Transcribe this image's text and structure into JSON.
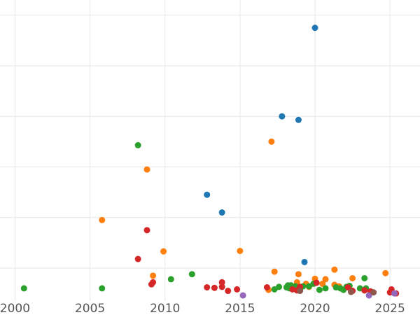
{
  "chart_data": {
    "type": "scatter",
    "title": "",
    "xlabel": "",
    "ylabel": "",
    "xlim": [
      1999,
      2027
    ],
    "ylim": [
      -0.15,
      5.8
    ],
    "grid": true,
    "x_ticks": [
      2000,
      2005,
      2010,
      2015,
      2020,
      2025
    ],
    "x_tick_labels": [
      "2000",
      "2005",
      "2010",
      "2015",
      "2020",
      "2025"
    ],
    "y_gridlines": [
      0.5,
      1.5,
      2.5,
      3.5,
      4.5,
      5.5
    ],
    "series": [
      {
        "color": "#1f77b4",
        "points": [
          [
            2012.8,
            1.95
          ],
          [
            2013.8,
            1.6
          ],
          [
            2017.8,
            3.5
          ],
          [
            2018.9,
            3.43
          ],
          [
            2019.3,
            0.62
          ],
          [
            2020.0,
            5.25
          ]
        ]
      },
      {
        "color": "#ff7f0e",
        "points": [
          [
            2005.8,
            1.45
          ],
          [
            2008.8,
            2.45
          ],
          [
            2009.2,
            0.35
          ],
          [
            2009.9,
            0.83
          ],
          [
            2015.0,
            0.84
          ],
          [
            2016.9,
            0.07
          ],
          [
            2017.1,
            3.0
          ],
          [
            2017.3,
            0.43
          ],
          [
            2018.8,
            0.22
          ],
          [
            2018.9,
            0.38
          ],
          [
            2019.4,
            0.19
          ],
          [
            2019.6,
            0.13
          ],
          [
            2020.0,
            0.29
          ],
          [
            2020.5,
            0.19
          ],
          [
            2020.7,
            0.28
          ],
          [
            2021.3,
            0.47
          ],
          [
            2021.3,
            0.17
          ],
          [
            2021.6,
            0.14
          ],
          [
            2022.5,
            0.3
          ],
          [
            2024.7,
            0.4
          ]
        ]
      },
      {
        "color": "#2ca02c",
        "points": [
          [
            2000.6,
            0.1
          ],
          [
            2005.8,
            0.1
          ],
          [
            2008.2,
            2.93
          ],
          [
            2010.4,
            0.28
          ],
          [
            2011.8,
            0.38
          ],
          [
            2017.3,
            0.08
          ],
          [
            2017.6,
            0.13
          ],
          [
            2018.1,
            0.12
          ],
          [
            2018.2,
            0.16
          ],
          [
            2018.3,
            0.1
          ],
          [
            2018.4,
            0.16
          ],
          [
            2018.6,
            0.11
          ],
          [
            2018.7,
            0.14
          ],
          [
            2019.0,
            0.08
          ],
          [
            2019.2,
            0.14
          ],
          [
            2019.6,
            0.14
          ],
          [
            2019.9,
            0.19
          ],
          [
            2020.3,
            0.07
          ],
          [
            2020.7,
            0.1
          ],
          [
            2021.4,
            0.12
          ],
          [
            2021.7,
            0.1
          ],
          [
            2021.9,
            0.07
          ],
          [
            2022.1,
            0.13
          ],
          [
            2022.3,
            0.15
          ],
          [
            2023.0,
            0.1
          ],
          [
            2023.3,
            0.3
          ],
          [
            2023.4,
            0.1
          ]
        ]
      },
      {
        "color": "#d62728",
        "points": [
          [
            2008.2,
            0.68
          ],
          [
            2008.8,
            1.25
          ],
          [
            2009.1,
            0.18
          ],
          [
            2009.2,
            0.22
          ],
          [
            2012.8,
            0.12
          ],
          [
            2013.3,
            0.11
          ],
          [
            2013.8,
            0.22
          ],
          [
            2013.8,
            0.13
          ],
          [
            2014.2,
            0.05
          ],
          [
            2014.8,
            0.08
          ],
          [
            2016.8,
            0.12
          ],
          [
            2018.5,
            0.08
          ],
          [
            2018.8,
            0.06
          ],
          [
            2019.0,
            0.13
          ],
          [
            2020.1,
            0.21
          ],
          [
            2022.2,
            0.12
          ],
          [
            2022.5,
            0.05
          ],
          [
            2023.3,
            0.06
          ],
          [
            2023.7,
            0.04
          ],
          [
            2025.0,
            0.02
          ],
          [
            2025.1,
            0.08
          ],
          [
            2025.4,
            0.0
          ]
        ]
      },
      {
        "color": "#9467bd",
        "points": [
          [
            2015.2,
            -0.04
          ],
          [
            2023.6,
            -0.04
          ],
          [
            2025.3,
            0.0
          ]
        ]
      },
      {
        "color": "#8c564b",
        "points": [
          [
            2019.0,
            0.05
          ],
          [
            2022.4,
            0.03
          ],
          [
            2023.9,
            0.02
          ]
        ]
      }
    ]
  }
}
